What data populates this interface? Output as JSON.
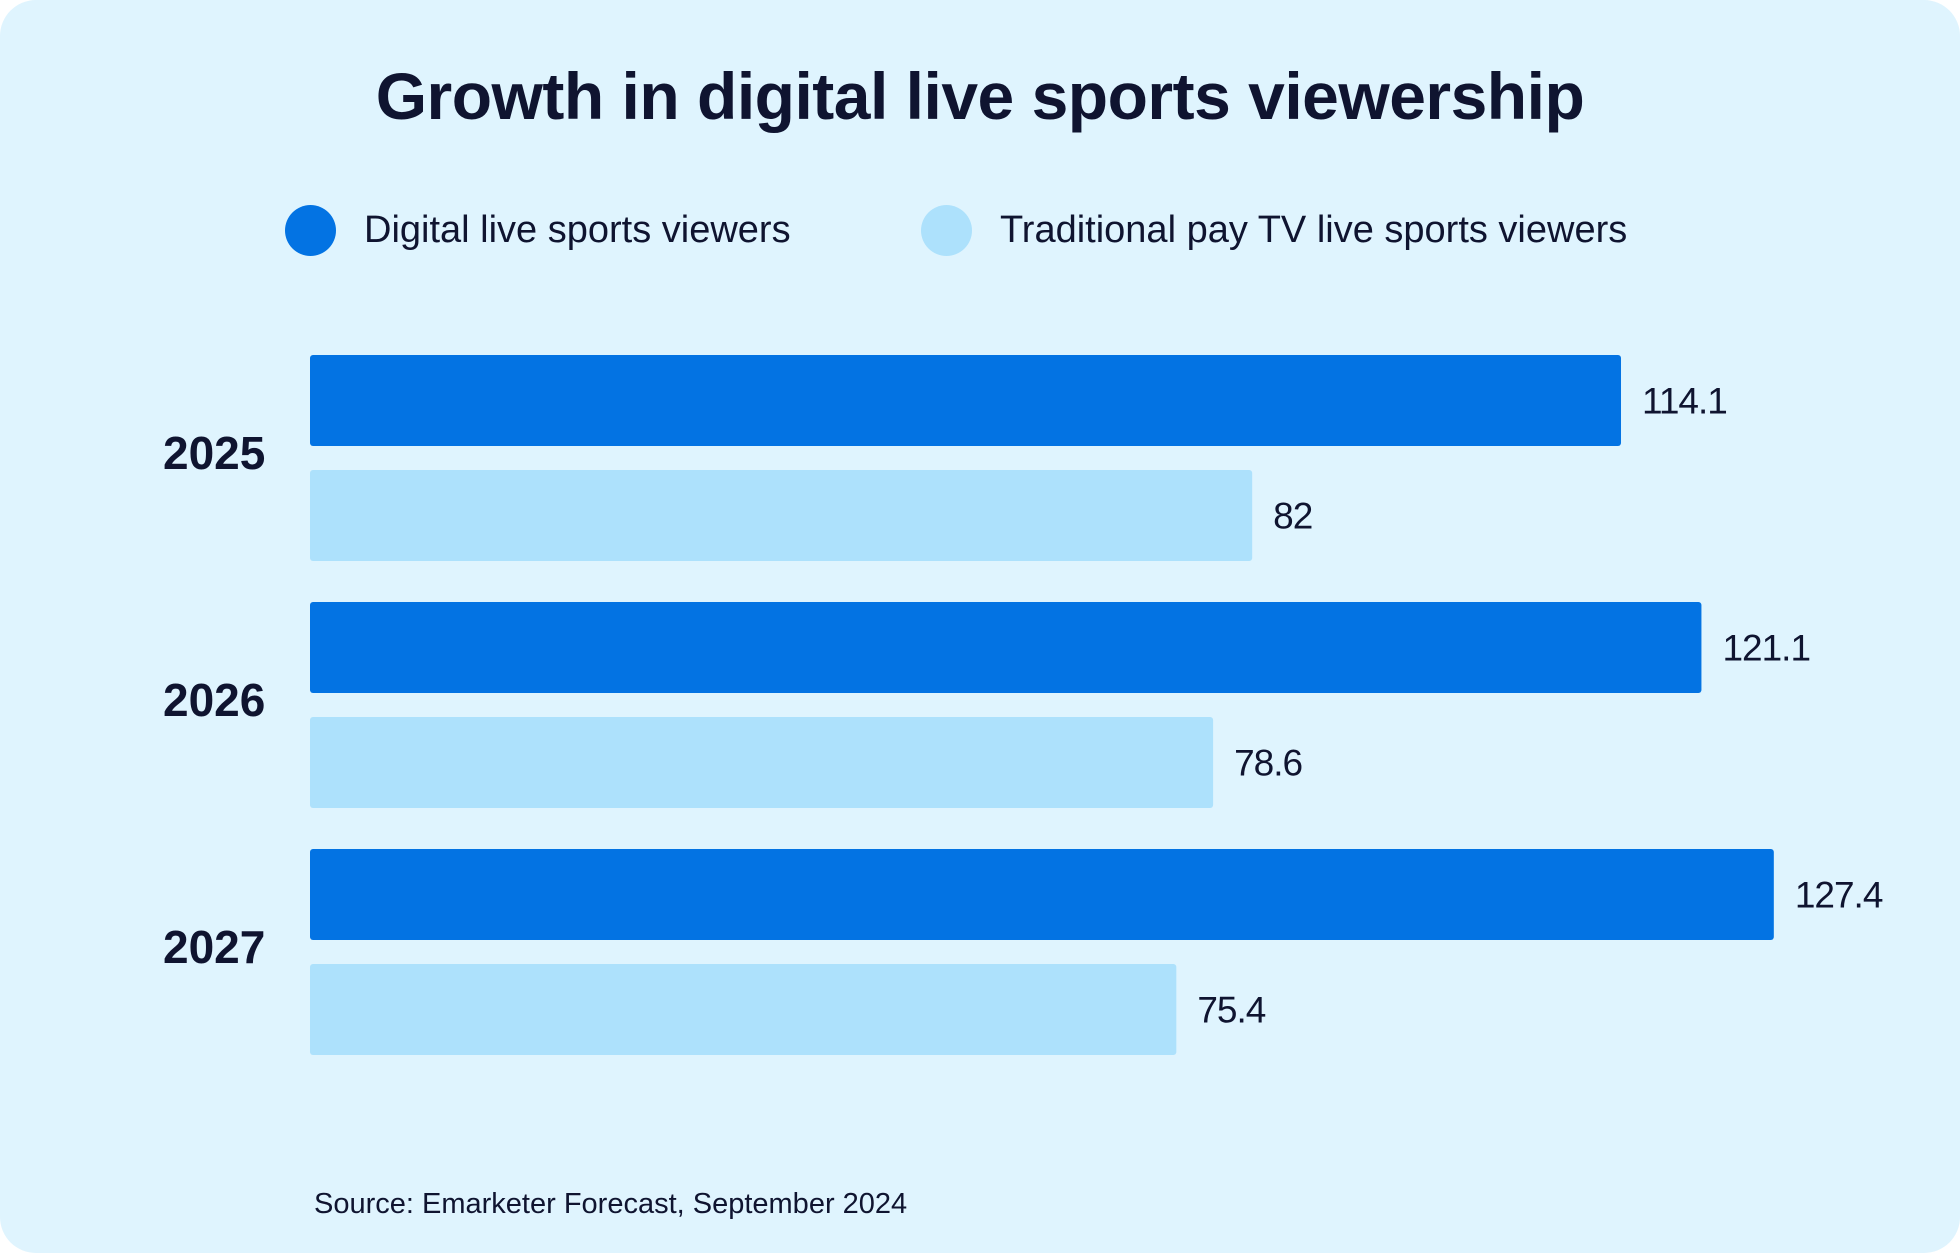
{
  "chart_data": {
    "type": "bar",
    "orientation": "horizontal",
    "title": "Growth in digital live sports viewership",
    "categories": [
      "2025",
      "2026",
      "2027"
    ],
    "series": [
      {
        "name": "Digital live sports viewers",
        "values": [
          114.1,
          121.1,
          127.4
        ],
        "labels": [
          "114.1",
          "121.1",
          "127.4"
        ],
        "color": "#0373e3"
      },
      {
        "name": "Traditional pay TV live sports viewers",
        "values": [
          82,
          78.6,
          75.4
        ],
        "labels": [
          "82",
          "78.6",
          "75.4"
        ],
        "color": "#ade1fc"
      }
    ],
    "xlim": [
      0,
      130
    ],
    "grid": false,
    "legend_position": "top",
    "source": "Source: Emarketer Forecast, September 2024"
  },
  "colors": {
    "background": "#dff4fe",
    "text": "#0f1430"
  }
}
